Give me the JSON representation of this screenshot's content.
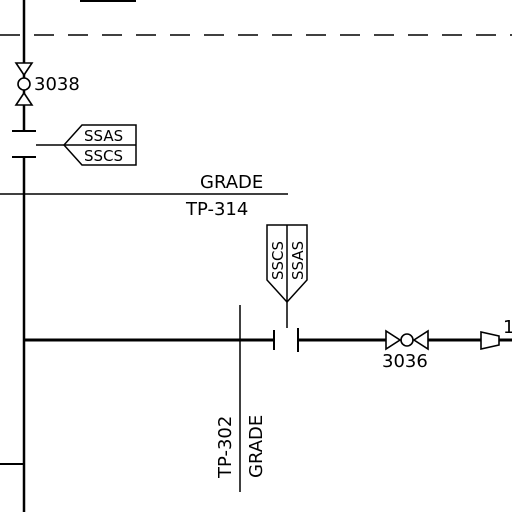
{
  "valve_top": {
    "tag": "3038"
  },
  "flag_top": {
    "line1": "SSAS",
    "line2": "SSCS"
  },
  "grade_horizontal": {
    "label": "GRADE",
    "tp": "TP-314"
  },
  "flag_vertical": {
    "line1": "SSCS",
    "line2": "SSAS"
  },
  "grade_vertical": {
    "label": "GRADE",
    "tp": "TP-302"
  },
  "valve_right": {
    "tag": "3036"
  },
  "edge_label": {
    "text": "1"
  },
  "colors": {
    "ink": "#000000",
    "background": "#ffffff"
  }
}
